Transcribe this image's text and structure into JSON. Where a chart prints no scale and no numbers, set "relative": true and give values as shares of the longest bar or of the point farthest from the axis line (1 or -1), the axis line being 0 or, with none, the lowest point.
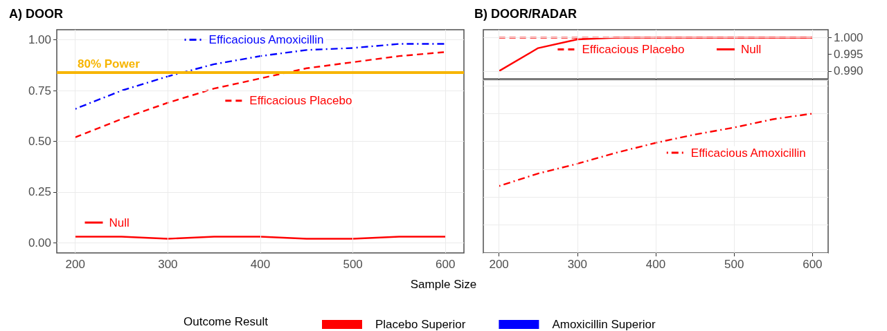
{
  "chart_data": [
    {
      "type": "line",
      "title": "A) DOOR",
      "xlabel": "Sample Size",
      "legend_title": "Outcome Result",
      "legend": "bottom",
      "grid": true,
      "x": [
        200,
        250,
        300,
        350,
        400,
        450,
        500,
        550,
        600
      ],
      "xlim": [
        180,
        620
      ],
      "xticks": [
        200,
        300,
        400,
        500,
        600
      ],
      "ylim": [
        -0.05,
        1.05
      ],
      "yticks": [
        {
          "value": 0,
          "label": "0.00"
        },
        0.25,
        {
          "value": 0.5,
          "label": "0.50"
        },
        0.75,
        {
          "value": 1,
          "label": "1.00"
        }
      ],
      "series": [
        {
          "name": "Placebo Superior",
          "color": "#ff0000",
          "line_style": "solid",
          "values": [
            0.03,
            0.03,
            0.02,
            0.03,
            0.03,
            0.02,
            0.02,
            0.03,
            0.03
          ]
        },
        {
          "color": "#ff0000",
          "line_style": "dashed",
          "values": [
            0.52,
            0.61,
            0.69,
            0.76,
            0.81,
            0.86,
            0.89,
            0.92,
            0.94
          ]
        },
        {
          "name": "Amoxicillin Superior",
          "color": "#0000ff",
          "line_style": "dashdot",
          "values": [
            0.66,
            0.75,
            0.82,
            0.88,
            0.92,
            0.95,
            0.96,
            0.98,
            0.98
          ]
        }
      ],
      "annotations": [
        "Null",
        "Efficacious Placebo",
        "Efficacious Amoxicillin"
      ],
      "ref_lines": [
        {
          "axis": "y",
          "value": 0.84,
          "label": "80% Power",
          "color": "#f7b500"
        }
      ]
    },
    {
      "type": "line",
      "title": "B) DOOR/RADAR",
      "grid": true,
      "tick_labels": "y",
      "x": [
        200,
        250,
        300,
        350,
        400,
        450,
        500,
        550,
        600
      ],
      "xlim": [
        180,
        620
      ],
      "xticks": [
        200,
        300,
        400,
        500,
        600
      ],
      "y2lim": [
        0.9877,
        1.0024
      ],
      "y2ticks": [
        {
          "value": 0.99,
          "label": "0.990"
        },
        0.995,
        {
          "value": 1,
          "label": "1.000"
        }
      ],
      "series": [
        {
          "color": "#ff0000",
          "line_style": "dashed",
          "axis": "y2",
          "values": [
            1.0,
            1.0,
            1.0,
            1.0,
            1.0,
            1.0,
            1.0,
            1.0,
            1.0
          ]
        },
        {
          "color": "#ff0000",
          "line_style": "solid",
          "axis": "y2",
          "values": [
            0.99,
            0.9969,
            0.9995,
            1.0,
            1.0,
            1.0,
            1.0,
            1.0,
            1.0
          ]
        }
      ],
      "annotations": [
        "Efficacious Placebo",
        "Null"
      ]
    },
    {
      "type": "line",
      "grid": true,
      "relative": true,
      "x": [
        200,
        250,
        300,
        350,
        400,
        450,
        500,
        550,
        600
      ],
      "xlim": [
        180,
        620
      ],
      "xticks": [
        200,
        300,
        400,
        500,
        600
      ],
      "series": [
        {
          "color": "#ff0000",
          "line_style": "dashdot",
          "values": [
            0.48,
            0.57,
            0.64,
            0.72,
            0.79,
            0.85,
            0.9,
            0.96,
            1
          ]
        }
      ],
      "annotations": [
        "Efficacious Amoxicillin"
      ]
    }
  ]
}
